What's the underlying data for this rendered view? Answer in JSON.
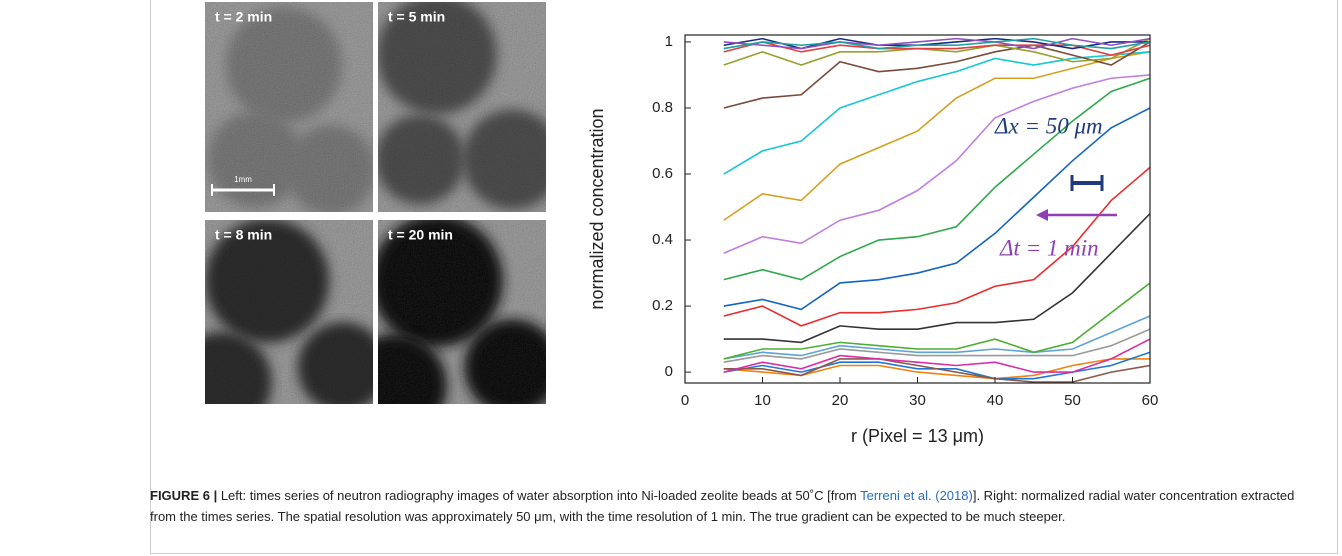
{
  "panels": [
    {
      "label": "t = 2 min"
    },
    {
      "label": "t = 5 min"
    },
    {
      "label": "t = 8 min"
    },
    {
      "label": "t = 20 min"
    }
  ],
  "scale_bar": "1mm",
  "chart_data": {
    "type": "line",
    "xlabel": "r (Pixel = 13 μm)",
    "ylabel": "normalized concentration",
    "x": [
      5,
      10,
      15,
      20,
      25,
      30,
      35,
      40,
      45,
      50,
      55,
      60
    ],
    "xlim": [
      0,
      60
    ],
    "xticks": [
      0,
      10,
      20,
      30,
      40,
      50,
      60
    ],
    "ylim": [
      -0.033,
      1.021
    ],
    "yticks": [
      0,
      0.2,
      0.4,
      0.6,
      0.8,
      1
    ],
    "series": [
      {
        "color": "#f0820f",
        "values": [
          0.01,
          0.0,
          -0.01,
          0.02,
          0.02,
          0.0,
          -0.01,
          -0.02,
          -0.01,
          0.02,
          0.04,
          0.04
        ]
      },
      {
        "color": "#1f77d4",
        "values": [
          0.0,
          0.02,
          0.0,
          0.03,
          0.03,
          0.01,
          0.01,
          -0.02,
          -0.02,
          0.0,
          0.02,
          0.06
        ]
      },
      {
        "color": "#8c564b",
        "values": [
          0.01,
          0.01,
          -0.01,
          0.04,
          0.04,
          0.02,
          0.0,
          -0.02,
          -0.03,
          -0.03,
          0.0,
          0.02
        ]
      },
      {
        "color": "#d62fa8",
        "values": [
          0.0,
          0.03,
          0.01,
          0.05,
          0.04,
          0.03,
          0.02,
          0.03,
          0.0,
          0.0,
          0.04,
          0.1
        ]
      },
      {
        "color": "#9a9a9a",
        "values": [
          0.03,
          0.05,
          0.04,
          0.07,
          0.06,
          0.05,
          0.05,
          0.05,
          0.05,
          0.05,
          0.08,
          0.13
        ]
      },
      {
        "color": "#5fa2d8",
        "values": [
          0.04,
          0.06,
          0.05,
          0.08,
          0.07,
          0.06,
          0.06,
          0.07,
          0.06,
          0.07,
          0.12,
          0.17
        ]
      },
      {
        "color": "#4caf30",
        "values": [
          0.04,
          0.07,
          0.07,
          0.09,
          0.08,
          0.07,
          0.07,
          0.1,
          0.06,
          0.09,
          0.18,
          0.27
        ]
      },
      {
        "color": "#333333",
        "values": [
          0.1,
          0.1,
          0.09,
          0.14,
          0.13,
          0.13,
          0.15,
          0.15,
          0.16,
          0.24,
          0.36,
          0.48
        ]
      },
      {
        "color": "#ee2a2a",
        "values": [
          0.17,
          0.2,
          0.14,
          0.18,
          0.18,
          0.19,
          0.21,
          0.26,
          0.28,
          0.38,
          0.52,
          0.62
        ]
      },
      {
        "color": "#1565c0",
        "values": [
          0.2,
          0.22,
          0.19,
          0.27,
          0.28,
          0.3,
          0.33,
          0.42,
          0.53,
          0.64,
          0.74,
          0.8
        ]
      },
      {
        "color": "#2ea84a",
        "values": [
          0.28,
          0.31,
          0.28,
          0.35,
          0.4,
          0.41,
          0.44,
          0.56,
          0.66,
          0.76,
          0.85,
          0.89
        ]
      },
      {
        "color": "#c07fe0",
        "values": [
          0.36,
          0.41,
          0.39,
          0.46,
          0.49,
          0.55,
          0.64,
          0.77,
          0.82,
          0.86,
          0.89,
          0.9
        ]
      },
      {
        "color": "#d4a020",
        "values": [
          0.46,
          0.54,
          0.52,
          0.63,
          0.68,
          0.73,
          0.83,
          0.89,
          0.89,
          0.92,
          0.95,
          0.97
        ]
      },
      {
        "color": "#16c8d0",
        "values": [
          0.6,
          0.67,
          0.7,
          0.8,
          0.84,
          0.88,
          0.91,
          0.95,
          0.93,
          0.95,
          0.96,
          0.97
        ]
      },
      {
        "color": "#7a4a3a",
        "values": [
          0.8,
          0.83,
          0.84,
          0.94,
          0.91,
          0.92,
          0.94,
          0.97,
          0.99,
          0.96,
          0.93,
          1.0
        ]
      },
      {
        "color": "#9aa030",
        "values": [
          0.93,
          0.97,
          0.93,
          0.97,
          0.97,
          0.98,
          0.97,
          0.99,
          0.97,
          0.94,
          0.95,
          1.01
        ]
      },
      {
        "color": "#e04040",
        "values": [
          0.97,
          1.0,
          0.97,
          0.99,
          0.98,
          0.98,
          0.98,
          0.99,
          0.99,
          0.99,
          0.96,
          0.99
        ]
      },
      {
        "color": "#1a2a80",
        "values": [
          0.99,
          1.01,
          0.98,
          1.01,
          0.99,
          0.99,
          1.0,
          1.01,
          1.0,
          0.98,
          1.0,
          1.0
        ]
      },
      {
        "color": "#9050c0",
        "values": [
          1.0,
          0.99,
          0.98,
          1.0,
          0.99,
          1.0,
          1.01,
          1.0,
          0.98,
          1.01,
          0.99,
          1.01
        ]
      },
      {
        "color": "#20a0a0",
        "values": [
          0.98,
          1.0,
          0.99,
          1.0,
          0.98,
          0.99,
          0.99,
          1.0,
          1.01,
          0.99,
          0.98,
          1.0
        ]
      }
    ],
    "annotations": [
      {
        "text": "Δx = 50 μm",
        "color": "#1f3b7a"
      },
      {
        "text": "Δt = 1 min",
        "color": "#8e3fb5"
      }
    ]
  },
  "caption": {
    "label": "FIGURE 6 |",
    "text_1": "Left: times series of neutron radiography images of water absorption into Ni-loaded zeolite beads at 50˚C [from",
    "reference": "Terreni et al. (2018)",
    "text_2": "]. Right: normalized radial water concentration extracted from the times series. The spatial resolution was approximately 50 μm, with the time resolution of 1 min. The true gradient can be expected to be much steeper."
  }
}
